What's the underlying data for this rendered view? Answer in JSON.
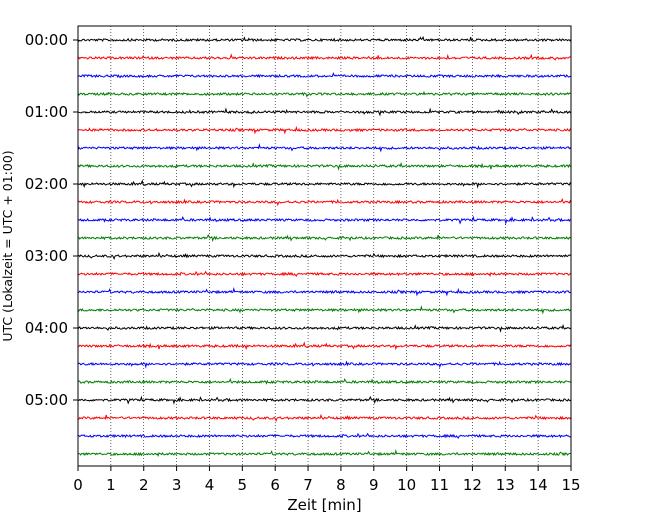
{
  "chart_data": {
    "type": "line",
    "title": "",
    "xlabel": "Zeit  [min]",
    "ylabel": "UTC (Lokalzeit = UTC + 01:00)",
    "xlim": [
      0,
      15
    ],
    "x_ticks": [
      "0",
      "1",
      "2",
      "3",
      "4",
      "5",
      "6",
      "7",
      "8",
      "9",
      "10",
      "11",
      "12",
      "13",
      "14",
      "15"
    ],
    "y_tick_labels": [
      "00:00",
      "01:00",
      "02:00",
      "03:00",
      "04:00",
      "05:00"
    ],
    "minutes_per_trace": 15,
    "trace_count": 24,
    "trace_color_cycle": [
      "#000000",
      "#ff0000",
      "#0000ff",
      "#007f00"
    ],
    "vertical_grid": "dotted, at each minute",
    "legend": "none"
  }
}
